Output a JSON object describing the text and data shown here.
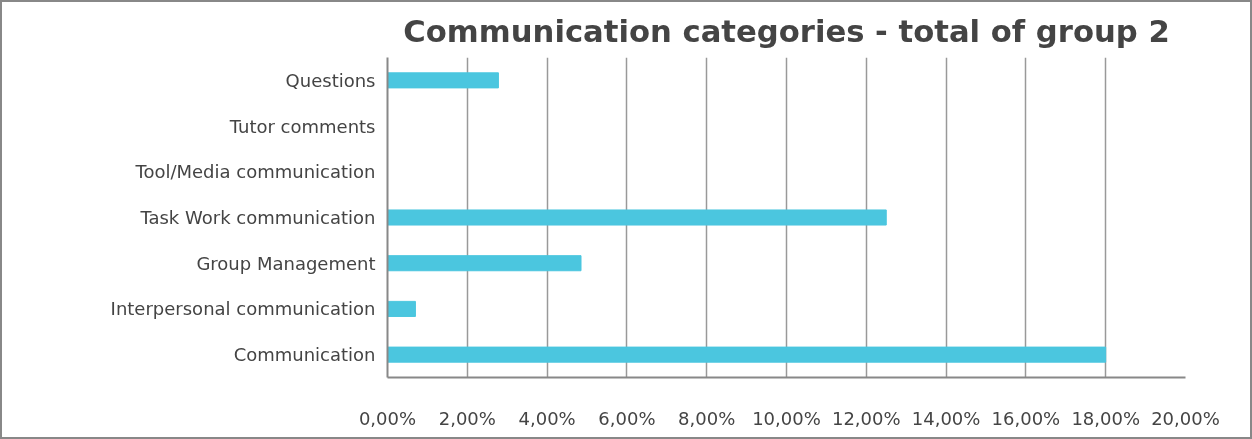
{
  "chart_data": {
    "type": "bar",
    "orientation": "horizontal",
    "title": "Communication categories - total of group 2",
    "categories": [
      "Questions",
      "Tutor comments",
      "Tool/Media communication",
      "Task Work communication",
      "Group Management",
      "Interpersonal communication",
      "Communication"
    ],
    "values": [
      2.78,
      0,
      0,
      12.5,
      4.85,
      0.7,
      18.0
    ],
    "color": "#4bc6df",
    "xlim": [
      0,
      20
    ],
    "xticks": [
      {
        "value": 0,
        "label": "0,00%"
      },
      {
        "value": 2,
        "label": "2,00%"
      },
      {
        "value": 4,
        "label": "4,00%"
      },
      {
        "value": 6,
        "label": "6,00%"
      },
      {
        "value": 8,
        "label": "8,00%"
      },
      {
        "value": 10,
        "label": "10,00%"
      },
      {
        "value": 12,
        "label": "12,00%"
      },
      {
        "value": 14,
        "label": "14,00%"
      },
      {
        "value": 16,
        "label": "16,00%"
      },
      {
        "value": 18,
        "label": "18,00%"
      },
      {
        "value": 20,
        "label": "20,00%"
      }
    ],
    "grid": "x"
  }
}
